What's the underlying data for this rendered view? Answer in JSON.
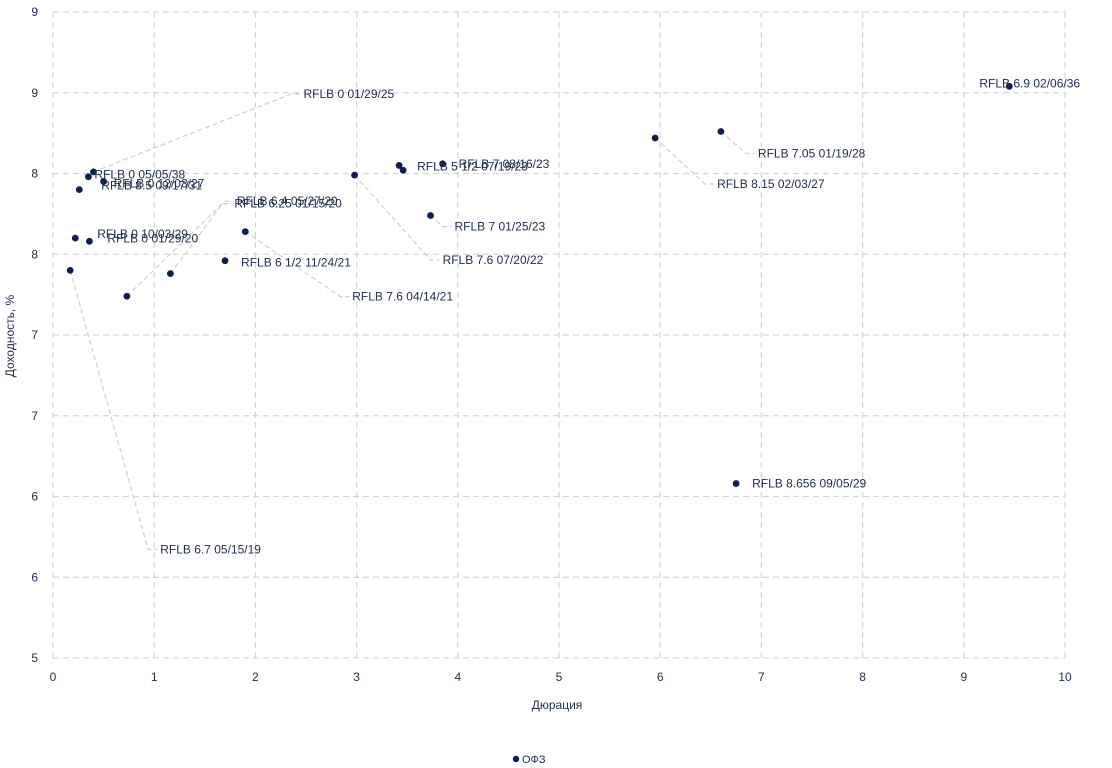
{
  "chart_data": {
    "type": "scatter",
    "xlabel": "Дюрация",
    "ylabel": "Доходность, %",
    "xlim": [
      0,
      10
    ],
    "ylim": [
      5,
      9
    ],
    "x_ticks": [
      "0",
      "1",
      "2",
      "3",
      "4",
      "5",
      "6",
      "7",
      "8",
      "9",
      "10"
    ],
    "y_ticks": [
      "5",
      "6",
      "6",
      "7",
      "7",
      "8",
      "8",
      "9",
      "9"
    ],
    "grid": true,
    "legend_position": "bottom",
    "series": [
      {
        "name": "ОФЗ",
        "color": "#0f1f4b",
        "points": [
          {
            "x": 0.17,
            "y": 7.4,
            "label": "RFLB 6.7 05/15/19"
          },
          {
            "x": 0.22,
            "y": 7.6,
            "label": "RFLB 0 10/03/29"
          },
          {
            "x": 0.26,
            "y": 7.9,
            "label": "RFLB 8.5 09/17/31"
          },
          {
            "x": 0.35,
            "y": 7.98,
            "label": "RFLB 0 05/05/38"
          },
          {
            "x": 0.36,
            "y": 7.58,
            "label": "RFLB 0 01/29/20"
          },
          {
            "x": 0.4,
            "y": 8.01,
            "label": "RFLB 0 01/29/25"
          },
          {
            "x": 0.5,
            "y": 7.95,
            "label": "RFLB 0 12/03/27"
          },
          {
            "x": 0.73,
            "y": 7.24,
            "label": "RFLB 6.4 05/27/20"
          },
          {
            "x": 1.16,
            "y": 7.38,
            "label": "RFLB 6.25 01/15/20"
          },
          {
            "x": 1.7,
            "y": 7.46,
            "label": "RFLB 6 1/2 11/24/21"
          },
          {
            "x": 1.9,
            "y": 7.64,
            "label": "RFLB 7.6 04/14/21"
          },
          {
            "x": 2.98,
            "y": 7.99,
            "label": "RFLB 7.6 07/20/22"
          },
          {
            "x": 3.42,
            "y": 8.05,
            "label": "RFLB 5 1/2 07/19/23"
          },
          {
            "x": 3.46,
            "y": 8.02,
            "label": "RFLB 5 1/2 07/19/23"
          },
          {
            "x": 3.73,
            "y": 7.74,
            "label": "RFLB 7 01/25/23"
          },
          {
            "x": 3.85,
            "y": 8.06,
            "label": "RFLB 7 08/16/23"
          },
          {
            "x": 5.95,
            "y": 8.22,
            "label": "RFLB 8.15 02/03/27"
          },
          {
            "x": 6.6,
            "y": 8.26,
            "label": "RFLB 7.05 01/19/28"
          },
          {
            "x": 6.75,
            "y": 6.08,
            "label": "RFLB 8.656 09/05/29"
          },
          {
            "x": 9.45,
            "y": 8.54,
            "label": "RFLB 6.9 02/06/36"
          }
        ]
      }
    ]
  }
}
